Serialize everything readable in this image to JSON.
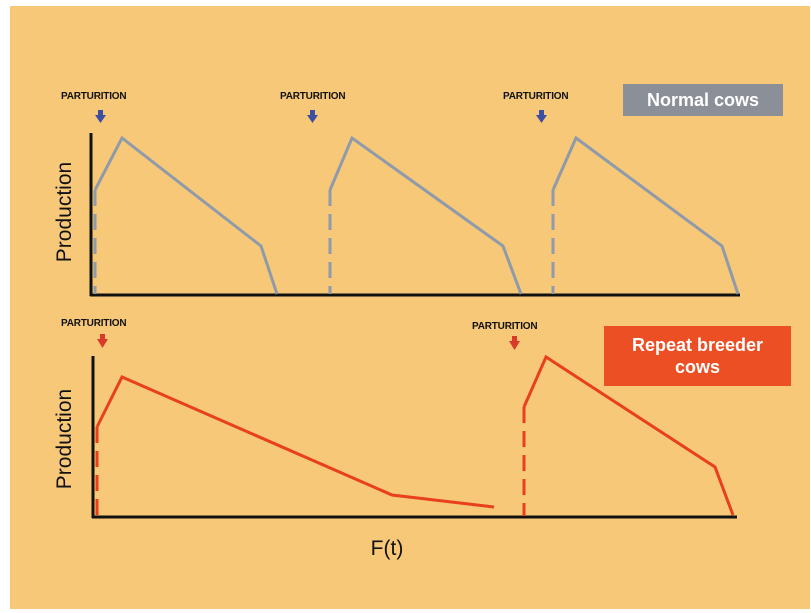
{
  "panels": {
    "normal": {
      "ylabel": "Production",
      "legend": "Normal cows",
      "parturition_labels": [
        "PARTURITION",
        "PARTURITION",
        "PARTURITION"
      ]
    },
    "repeat": {
      "ylabel": "Production",
      "legend_line1": "Repeat breeder",
      "legend_line2": "cows",
      "parturition_labels": [
        "PARTURITION",
        "PARTURITION"
      ]
    }
  },
  "xlabel": "F(t)",
  "colors": {
    "background": "#f7c877",
    "normal_curve": "#8f9bab",
    "repeat_curve": "#e8401e",
    "normal_arrow": "#3d4fa3",
    "repeat_arrow": "#d93a2a",
    "axis": "#111111",
    "normal_legend_bg": "#8a8f98",
    "repeat_legend_bg": "#ec4f23"
  }
}
